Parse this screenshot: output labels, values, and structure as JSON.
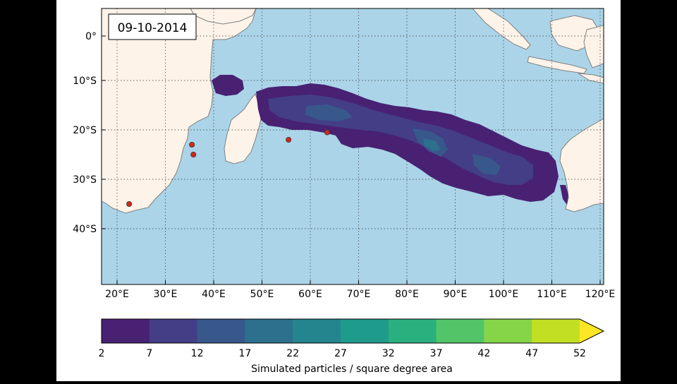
{
  "date_label": "09-10-2014",
  "map": {
    "lon_ticks": [
      "20°E",
      "30°E",
      "40°E",
      "50°E",
      "60°E",
      "70°E",
      "80°E",
      "90°E",
      "100°E",
      "110°E",
      "120°E"
    ],
    "lat_ticks": [
      "0°",
      "10°S",
      "20°S",
      "30°S",
      "40°S"
    ],
    "ocean_color": "#abd4e8",
    "land_color": "#fdf3e9",
    "coast_color": "#808080"
  },
  "colorbar": {
    "label": "Simulated particles / square degree area",
    "ticks": [
      "2",
      "7",
      "12",
      "17",
      "22",
      "27",
      "32",
      "37",
      "42",
      "47",
      "52"
    ],
    "colors": [
      "#482173",
      "#433e85",
      "#38588c",
      "#2d708e",
      "#25858e",
      "#1e9b8a",
      "#2ab07f",
      "#52c569",
      "#86d549",
      "#c2df23",
      "#fde725"
    ],
    "extend": "max"
  },
  "observation_points": [
    {
      "lon": 35.5,
      "lat": -22
    },
    {
      "lon": 35.8,
      "lat": -24
    },
    {
      "lon": 22.5,
      "lat": -34
    },
    {
      "lon": 55.5,
      "lat": -21
    },
    {
      "lon": 63.5,
      "lat": -19.5
    }
  ]
}
